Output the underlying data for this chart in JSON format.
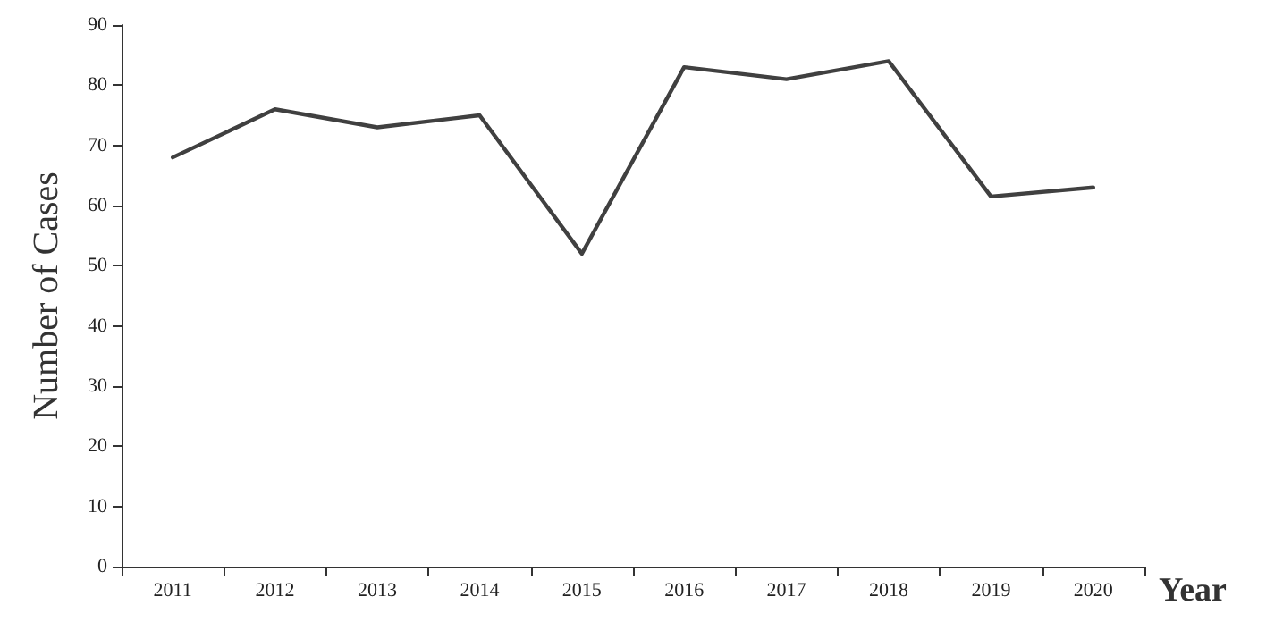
{
  "chart_data": {
    "type": "line",
    "xlabel": "Year",
    "ylabel": "Number of Cases",
    "categories": [
      "2011",
      "2012",
      "2013",
      "2014",
      "2015",
      "2016",
      "2017",
      "2018",
      "2019",
      "2020"
    ],
    "series": [
      {
        "color": "#404040",
        "values": [
          68,
          76,
          73,
          75,
          52,
          83,
          81,
          84,
          61.5,
          63
        ]
      }
    ],
    "ylim": [
      0,
      90
    ],
    "yticks": [
      0,
      10,
      20,
      30,
      40,
      50,
      60,
      70,
      80,
      90
    ],
    "grid": false,
    "marker": "none",
    "line_style": "solid"
  }
}
